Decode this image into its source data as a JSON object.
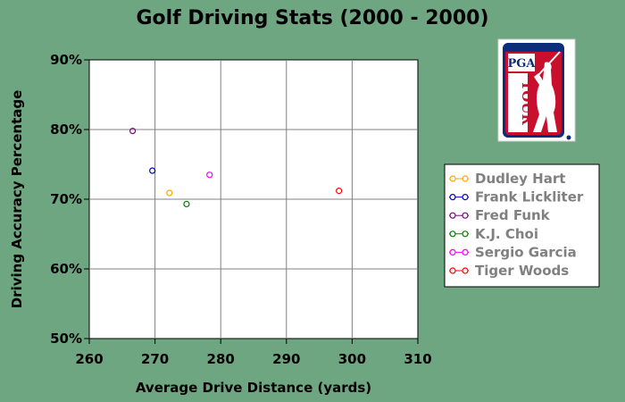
{
  "chart_data": {
    "type": "scatter",
    "title": "Golf Driving Stats (2000 - 2000)",
    "xlabel": "Average Drive Distance (yards)",
    "ylabel": "Driving Accuracy Percentage",
    "xlim": [
      260,
      310
    ],
    "ylim": [
      50,
      90
    ],
    "x_ticks": [
      "260",
      "270",
      "280",
      "290",
      "300",
      "310"
    ],
    "y_ticks": [
      "50%",
      "60%",
      "70%",
      "80%",
      "90%"
    ],
    "grid": true,
    "legend_position": "right",
    "series": [
      {
        "name": "Dudley Hart",
        "color": "#ffa500",
        "x": 272.2,
        "y": 70.9
      },
      {
        "name": "Frank Lickliter",
        "color": "#0000cc",
        "x": 269.6,
        "y": 74.1
      },
      {
        "name": "Fred Funk",
        "color": "#800080",
        "x": 266.6,
        "y": 79.8
      },
      {
        "name": "K.J. Choi",
        "color": "#008000",
        "x": 274.8,
        "y": 69.3
      },
      {
        "name": "Sergio Garcia",
        "color": "#ff00ff",
        "x": 278.3,
        "y": 73.5
      },
      {
        "name": "Tiger Woods",
        "color": "#ff0000",
        "x": 298.0,
        "y": 71.2
      }
    ]
  },
  "logo": {
    "name": "pga-tour-logo",
    "text_top": "PGA",
    "text_side": "TOUR",
    "colors": {
      "blue": "#0b2d7a",
      "red": "#c8102e",
      "white": "#ffffff"
    }
  }
}
